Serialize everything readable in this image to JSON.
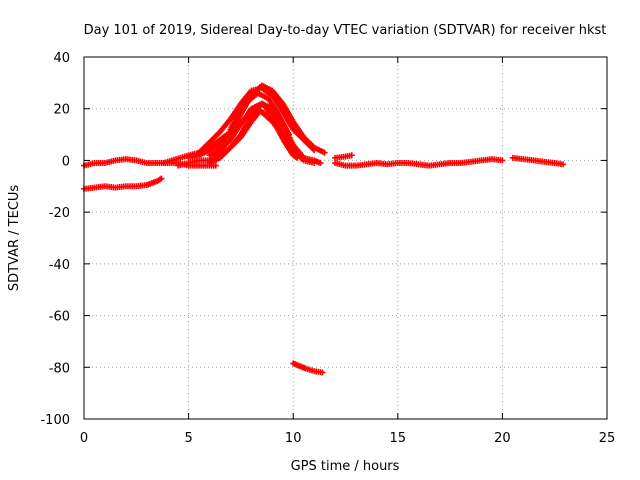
{
  "chart_data": {
    "type": "scatter",
    "title": "Day 101 of 2019, Sidereal Day-to-day VTEC variation (SDTVAR) for receiver hkst",
    "xlabel": "GPS time / hours",
    "ylabel": "SDTVAR / TECUs",
    "xlim": [
      0,
      25
    ],
    "ylim": [
      -100,
      40
    ],
    "xticks": [
      0,
      5,
      10,
      15,
      20,
      25
    ],
    "yticks": [
      -100,
      -80,
      -60,
      -40,
      -20,
      0,
      20,
      40
    ],
    "xtick_labels": [
      "0",
      "5",
      "10",
      "15",
      "20",
      "25"
    ],
    "ytick_labels": [
      "-100",
      "-80",
      "-60",
      "-40",
      "-20",
      "0",
      "20",
      "40"
    ],
    "grid": true,
    "marker": "+",
    "color": "#ff0000",
    "series": [
      {
        "name": "track-1",
        "points": [
          [
            0,
            -2
          ],
          [
            0.5,
            -1
          ],
          [
            1,
            -1
          ],
          [
            1.5,
            0
          ],
          [
            2,
            0.5
          ],
          [
            2.5,
            0
          ],
          [
            3,
            -1
          ],
          [
            3.5,
            -1
          ],
          [
            4,
            -1
          ],
          [
            4.5,
            -1
          ],
          [
            5,
            -2
          ],
          [
            5.5,
            -2
          ],
          [
            6,
            -2
          ],
          [
            6.3,
            -2
          ]
        ]
      },
      {
        "name": "track-2",
        "points": [
          [
            0,
            -11
          ],
          [
            0.5,
            -10.5
          ],
          [
            1,
            -10
          ],
          [
            1.5,
            -10.5
          ],
          [
            2,
            -10
          ],
          [
            2.5,
            -10
          ],
          [
            3,
            -9.5
          ],
          [
            3.5,
            -8
          ],
          [
            3.7,
            -7
          ]
        ]
      },
      {
        "name": "track-3",
        "points": [
          [
            3.8,
            -1
          ],
          [
            4.2,
            0
          ],
          [
            4.6,
            1
          ],
          [
            5,
            2
          ],
          [
            5.5,
            3
          ],
          [
            6,
            5
          ],
          [
            6.5,
            8
          ],
          [
            7,
            11
          ],
          [
            7.5,
            15
          ],
          [
            8,
            18
          ],
          [
            8.3,
            20
          ],
          [
            8.6,
            18
          ],
          [
            9,
            15
          ],
          [
            9.5,
            10
          ],
          [
            10,
            5
          ],
          [
            10.3,
            3
          ]
        ]
      },
      {
        "name": "track-4",
        "points": [
          [
            5,
            1
          ],
          [
            5.5,
            2
          ],
          [
            6,
            4
          ],
          [
            6.5,
            6
          ],
          [
            7,
            11
          ],
          [
            7.5,
            18
          ],
          [
            8,
            25
          ],
          [
            8.5,
            29
          ],
          [
            9,
            27
          ],
          [
            9.5,
            22
          ],
          [
            10,
            15
          ],
          [
            10.5,
            9
          ],
          [
            11,
            5
          ],
          [
            11.5,
            3
          ]
        ]
      },
      {
        "name": "track-5",
        "points": [
          [
            5.5,
            3
          ],
          [
            6,
            7
          ],
          [
            6.5,
            11
          ],
          [
            7,
            16
          ],
          [
            7.5,
            22
          ],
          [
            8,
            27
          ],
          [
            8.5,
            28
          ],
          [
            9,
            25
          ],
          [
            9.5,
            19
          ],
          [
            10,
            12
          ],
          [
            10.5,
            8
          ],
          [
            11,
            4
          ]
        ]
      },
      {
        "name": "track-6",
        "points": [
          [
            6,
            -1
          ],
          [
            6.5,
            1
          ],
          [
            7,
            5
          ],
          [
            7.5,
            10
          ],
          [
            8,
            17
          ],
          [
            8.5,
            22
          ],
          [
            9,
            20
          ],
          [
            9.5,
            14
          ],
          [
            10,
            6
          ],
          [
            10.5,
            1
          ],
          [
            11,
            0
          ],
          [
            11.3,
            -1
          ]
        ]
      },
      {
        "name": "track-7",
        "points": [
          [
            4.5,
            -2
          ],
          [
            5,
            -1
          ],
          [
            5.5,
            0
          ],
          [
            6,
            0
          ],
          [
            6.5,
            2
          ],
          [
            7,
            5
          ],
          [
            7.5,
            9
          ],
          [
            8,
            15
          ],
          [
            8.4,
            19
          ],
          [
            8.8,
            18
          ],
          [
            9.2,
            13
          ],
          [
            9.6,
            7
          ],
          [
            10,
            2
          ],
          [
            10.2,
            1
          ]
        ]
      },
      {
        "name": "track-8",
        "points": [
          [
            6,
            2
          ],
          [
            6.5,
            4
          ],
          [
            7,
            8
          ],
          [
            7.5,
            14
          ],
          [
            8,
            20
          ],
          [
            8.5,
            22
          ],
          [
            9,
            18
          ],
          [
            9.5,
            10
          ],
          [
            10,
            4
          ],
          [
            10.5,
            0
          ],
          [
            11,
            -1
          ]
        ]
      },
      {
        "name": "track-9",
        "points": [
          [
            7,
            12
          ],
          [
            7.5,
            20
          ],
          [
            8,
            24
          ],
          [
            8.3,
            26
          ],
          [
            8.8,
            24
          ],
          [
            9.3,
            18
          ],
          [
            9.8,
            10
          ]
        ]
      },
      {
        "name": "track-10",
        "points": [
          [
            12,
            1
          ],
          [
            12.5,
            1.5
          ],
          [
            12.8,
            2
          ]
        ]
      },
      {
        "name": "track-11",
        "points": [
          [
            12,
            -1
          ],
          [
            12.5,
            -2
          ],
          [
            13,
            -2
          ],
          [
            13.5,
            -1.5
          ],
          [
            14,
            -1
          ],
          [
            14.5,
            -1.5
          ],
          [
            15,
            -1
          ],
          [
            15.5,
            -1
          ],
          [
            16,
            -1.5
          ],
          [
            16.5,
            -2
          ],
          [
            17,
            -1.5
          ],
          [
            17.5,
            -1
          ],
          [
            18,
            -1
          ],
          [
            18.5,
            -0.5
          ],
          [
            19,
            0
          ],
          [
            19.5,
            0.5
          ],
          [
            20,
            0
          ]
        ]
      },
      {
        "name": "track-12",
        "points": [
          [
            20.5,
            1
          ],
          [
            21,
            0.5
          ],
          [
            21.5,
            0
          ],
          [
            22,
            -0.5
          ],
          [
            22.5,
            -1
          ],
          [
            22.9,
            -1.5
          ]
        ]
      },
      {
        "name": "track-13",
        "points": [
          [
            10,
            -78.5
          ],
          [
            10.3,
            -79.5
          ],
          [
            10.6,
            -80.5
          ],
          [
            11,
            -81.5
          ],
          [
            11.4,
            -82
          ]
        ]
      }
    ]
  }
}
